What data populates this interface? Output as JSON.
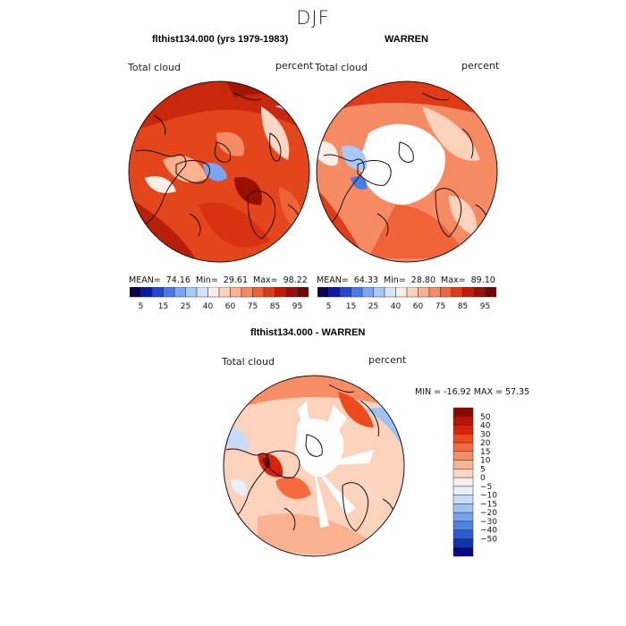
{
  "figure": {
    "title": "DJF"
  },
  "panels": [
    {
      "title": "flthist134.000 (yrs 1979-1983)",
      "variable_label": "Total cloud",
      "units_label": "percent",
      "stats": {
        "mean_label": "MEAN=",
        "mean": "74.16",
        "min_label": "Min=",
        "min": "29.61",
        "max_label": "Max=",
        "max": "98.22"
      }
    },
    {
      "title": "WARREN",
      "variable_label": "Total cloud",
      "units_label": "percent",
      "stats": {
        "mean_label": "MEAN=",
        "mean": "64.33",
        "min_label": "Min=",
        "min": "28.80",
        "max_label": "Max=",
        "max": "89.10"
      }
    },
    {
      "title": "flthist134.000 - WARREN",
      "variable_label": "Total cloud",
      "units_label": "percent",
      "stats_text": "MIN = -16.92 MAX =  57.35"
    }
  ],
  "colorbar_horizontal": {
    "colors": [
      "#08004a",
      "#0a1a9c",
      "#2248d6",
      "#4a7bea",
      "#7aa6f2",
      "#a8c8f7",
      "#d2e5fb",
      "#fbeee6",
      "#fbd3bd",
      "#f9b190",
      "#f68b63",
      "#f06238",
      "#e03a16",
      "#c41a06",
      "#991003",
      "#6e0802"
    ],
    "tick_labels": [
      "5",
      "15",
      "25",
      "40",
      "60",
      "75",
      "85",
      "95"
    ]
  },
  "colorbar_vertical": {
    "colors_top_to_bottom": [
      "#8b0a00",
      "#b31400",
      "#d52408",
      "#ee4a1c",
      "#f76a3d",
      "#f98e66",
      "#fbb292",
      "#fdd5c2",
      "#fdf0ea",
      "#e7f0fb",
      "#c5dbf7",
      "#9fc2f3",
      "#77a5ed",
      "#4f82e6",
      "#2a5cd8",
      "#1130b8",
      "#06058a"
    ],
    "tick_labels": [
      "50",
      "40",
      "30",
      "20",
      "15",
      "10",
      "5",
      "0",
      "−5",
      "−10",
      "−15",
      "−20",
      "−30",
      "−40",
      "−50"
    ]
  },
  "colors": {
    "land_outline": "#111111",
    "ice_blank": "#ffffff"
  }
}
